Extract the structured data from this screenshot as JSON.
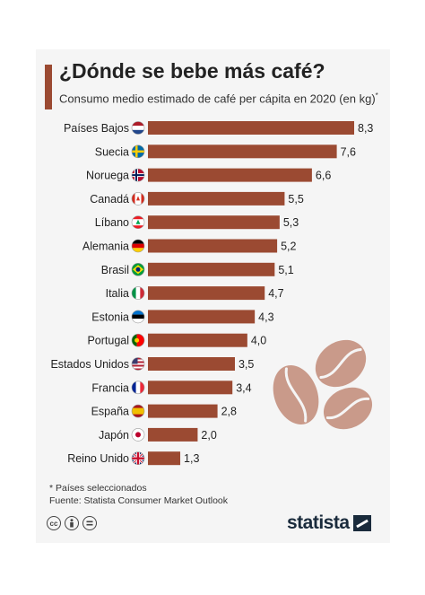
{
  "header": {
    "title": "¿Dónde se bebe más café?",
    "subtitle": "Consumo medio estimado de café per cápita en 2020 (en kg)",
    "subtitle_mark": "*"
  },
  "footer": {
    "note": "* Países seleccionados",
    "source": "Fuente: Statista Consumer Market Outlook",
    "brand": "statista"
  },
  "colors": {
    "bar": "#9b4a32",
    "background": "#f5f5f5",
    "bean": "#c99a8a"
  },
  "icons": [
    "cc-icon",
    "attribution-icon",
    "no-derivatives-icon",
    "coffee-beans-icon",
    "statista-logo-icon"
  ],
  "chart_data": {
    "type": "bar",
    "orientation": "horizontal",
    "xlim": [
      0,
      8.3
    ],
    "grid": false,
    "categories": [
      "Países Bajos",
      "Suecia",
      "Noruega",
      "Canadá",
      "Líbano",
      "Alemania",
      "Brasil",
      "Italia",
      "Estonia",
      "Portugal",
      "Estados Unidos",
      "Francia",
      "España",
      "Japón",
      "Reino Unido"
    ],
    "values": [
      8.3,
      7.6,
      6.6,
      5.5,
      5.3,
      5.2,
      5.1,
      4.7,
      4.3,
      4.0,
      3.5,
      3.4,
      2.8,
      2.0,
      1.3
    ],
    "value_labels": [
      "8,3",
      "7,6",
      "6,6",
      "5,5",
      "5,3",
      "5,2",
      "5,1",
      "4,7",
      "4,3",
      "4,0",
      "3,5",
      "3,4",
      "2,8",
      "2,0",
      "1,3"
    ],
    "flags": [
      "netherlands-flag-icon",
      "sweden-flag-icon",
      "norway-flag-icon",
      "canada-flag-icon",
      "lebanon-flag-icon",
      "germany-flag-icon",
      "brazil-flag-icon",
      "italy-flag-icon",
      "estonia-flag-icon",
      "portugal-flag-icon",
      "usa-flag-icon",
      "france-flag-icon",
      "spain-flag-icon",
      "japan-flag-icon",
      "uk-flag-icon"
    ]
  }
}
